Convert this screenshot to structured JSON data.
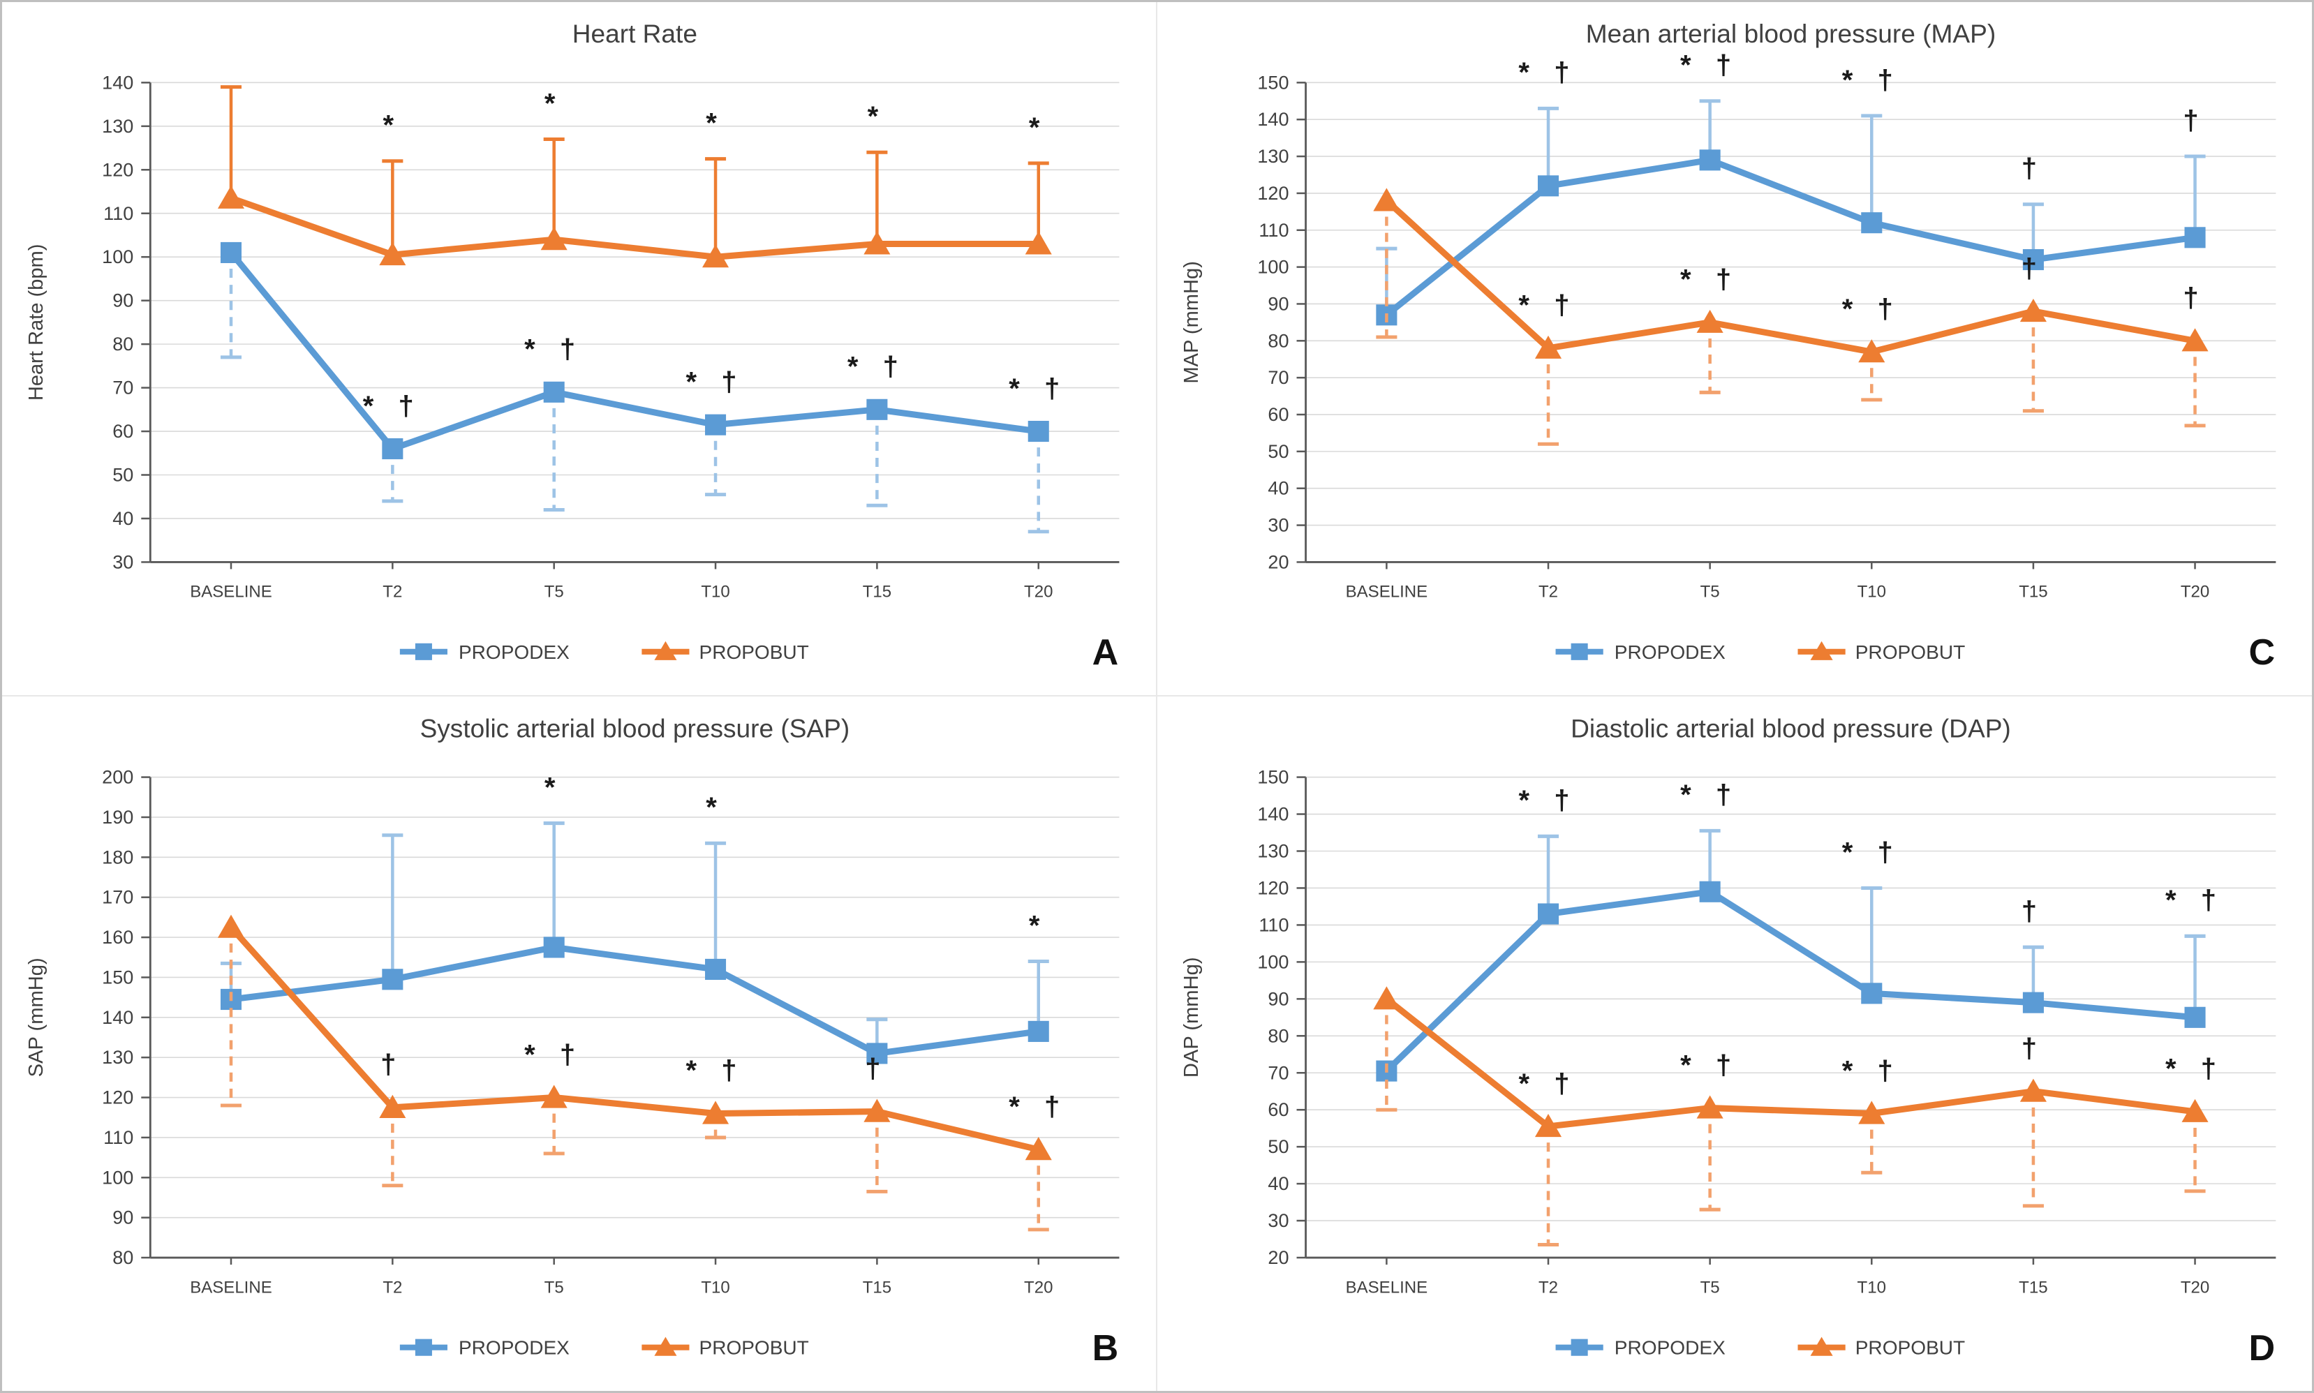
{
  "figure": {
    "background": "#ffffff",
    "outer_border_color": "#bfbfbf",
    "panel_divider_color": "#e8e8e8"
  },
  "palette": {
    "propodex_blue": "#5B9BD5",
    "propodex_error_blue": "#9DC3E6",
    "propobut_orange": "#ED7D31",
    "propobut_error_orange": "#F2A16D",
    "gridline": "#D9D9D9",
    "axis": "#595959",
    "label_text": "#404040",
    "annotation_text": "#1a1a1a"
  },
  "legend": {
    "propodex_label": "PROPODEX",
    "propobut_label": "PROPOBUT"
  },
  "chart_data": [
    {
      "id": "A",
      "type": "line",
      "title": "Heart Rate",
      "ylabel": "Heart Rate (bpm)",
      "ylim": [
        30,
        140
      ],
      "ystep": 10,
      "grid": true,
      "legend_position": "bottom",
      "panel_label": "A",
      "categories": [
        "BASELINE",
        "T2",
        "T5",
        "T10",
        "T15",
        "T20"
      ],
      "series": [
        {
          "name": "PROPODEX",
          "color": "#5B9BD5",
          "marker": "square",
          "err": {
            "dir": "down",
            "style": "dashed",
            "color": "#9DC3E6"
          },
          "values": [
            101,
            56,
            69,
            61.5,
            65,
            60
          ],
          "err_ends": [
            77,
            44,
            42,
            45.5,
            43,
            37
          ],
          "annotations": [
            "",
            "* †",
            "* †",
            "* †",
            "* †",
            "* †"
          ]
        },
        {
          "name": "PROPOBUT",
          "color": "#ED7D31",
          "marker": "triangle",
          "err": {
            "dir": "up",
            "style": "solid",
            "color": "#ED7D31"
          },
          "values": [
            113.5,
            100.5,
            104,
            100,
            103,
            103
          ],
          "err_ends": [
            139,
            122,
            127,
            122.5,
            124,
            121.5
          ],
          "annotations": [
            "",
            "*",
            "*",
            "*",
            "*",
            "*"
          ]
        }
      ]
    },
    {
      "id": "C",
      "type": "line",
      "title": "Mean arterial blood pressure (MAP)",
      "ylabel": "MAP (mmHg)",
      "ylim": [
        20,
        150
      ],
      "ystep": 10,
      "grid": true,
      "legend_position": "bottom",
      "panel_label": "C",
      "categories": [
        "BASELINE",
        "T2",
        "T5",
        "T10",
        "T15",
        "T20"
      ],
      "series": [
        {
          "name": "PROPODEX",
          "color": "#5B9BD5",
          "marker": "square",
          "err": {
            "dir": "up",
            "style": "solid",
            "color": "#9DC3E6"
          },
          "values": [
            87,
            122,
            129,
            112,
            102,
            108
          ],
          "err_ends": [
            105,
            143,
            145,
            141,
            117,
            130
          ],
          "annotations": [
            "",
            "* †",
            "* †",
            "* †",
            "†",
            "†"
          ]
        },
        {
          "name": "PROPOBUT",
          "color": "#ED7D31",
          "marker": "triangle",
          "err": {
            "dir": "down",
            "style": "dashed",
            "color": "#F2A16D"
          },
          "values": [
            118,
            78,
            85,
            77,
            88,
            80
          ],
          "err_ends": [
            81,
            52,
            66,
            64,
            61,
            57
          ],
          "annotations": [
            "",
            "* †",
            "* †",
            "* †",
            "†",
            "†"
          ]
        }
      ]
    },
    {
      "id": "B",
      "type": "line",
      "title": "Systolic arterial blood pressure (SAP)",
      "ylabel": "SAP (mmHg)",
      "ylim": [
        80,
        200
      ],
      "ystep": 10,
      "grid": true,
      "legend_position": "bottom",
      "panel_label": "B",
      "categories": [
        "BASELINE",
        "T2",
        "T5",
        "T10",
        "T15",
        "T20"
      ],
      "series": [
        {
          "name": "PROPODEX",
          "color": "#5B9BD5",
          "marker": "square",
          "err": {
            "dir": "up",
            "style": "solid",
            "color": "#9DC3E6"
          },
          "values": [
            144.5,
            149.5,
            157.5,
            152,
            131,
            136.5
          ],
          "err_ends": [
            153.5,
            185.5,
            188.5,
            183.5,
            139.5,
            154
          ],
          "annotations": [
            "",
            "",
            "*",
            "*",
            "",
            "*"
          ]
        },
        {
          "name": "PROPOBUT",
          "color": "#ED7D31",
          "marker": "triangle",
          "err": {
            "dir": "down",
            "style": "dashed",
            "color": "#F2A16D"
          },
          "values": [
            162.5,
            117.5,
            120,
            116,
            116.5,
            107
          ],
          "err_ends": [
            118,
            98,
            106,
            110,
            96.5,
            87
          ],
          "annotations": [
            "",
            "†",
            "* †",
            "* †",
            "†",
            "* †"
          ]
        }
      ]
    },
    {
      "id": "D",
      "type": "line",
      "title": "Diastolic arterial blood pressure (DAP)",
      "ylabel": "DAP (mmHg)",
      "ylim": [
        20,
        150
      ],
      "ystep": 10,
      "grid": true,
      "legend_position": "bottom",
      "panel_label": "D",
      "categories": [
        "BASELINE",
        "T2",
        "T5",
        "T10",
        "T15",
        "T20"
      ],
      "series": [
        {
          "name": "PROPODEX",
          "color": "#5B9BD5",
          "marker": "square",
          "err": {
            "dir": "up",
            "style": "solid",
            "color": "#9DC3E6"
          },
          "values": [
            70.5,
            113,
            119,
            91.5,
            89,
            85
          ],
          "err_ends": [
            null,
            134,
            135.5,
            120,
            104,
            107
          ],
          "annotations": [
            "",
            "* †",
            "* †",
            "* †",
            "†",
            "* †"
          ]
        },
        {
          "name": "PROPOBUT",
          "color": "#ED7D31",
          "marker": "triangle",
          "err": {
            "dir": "down",
            "style": "dashed",
            "color": "#F2A16D"
          },
          "values": [
            90,
            55.5,
            60.5,
            59,
            65,
            59.5
          ],
          "err_ends": [
            60,
            23.5,
            33,
            43,
            34,
            38
          ],
          "annotations": [
            "",
            "* †",
            "* †",
            "* †",
            "†",
            "* †"
          ]
        }
      ]
    }
  ]
}
